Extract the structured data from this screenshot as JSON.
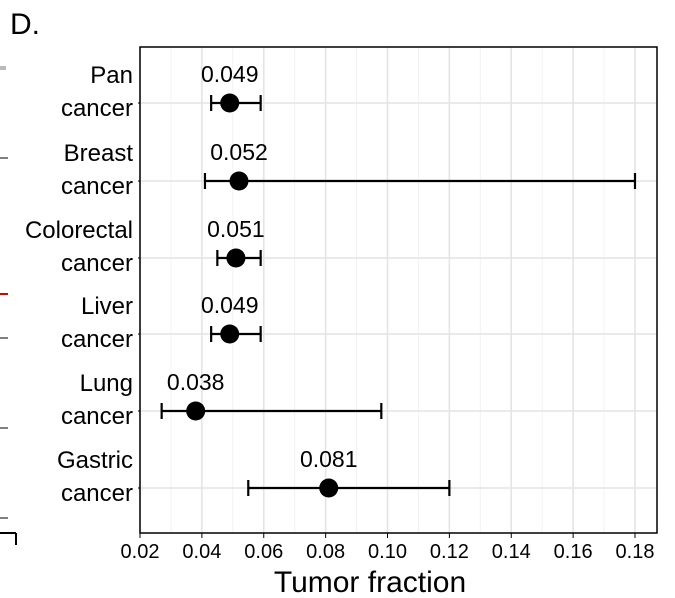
{
  "panel_label": "D.",
  "chart_data": {
    "type": "scatter",
    "subtype": "forest-plot",
    "xlabel": "Tumor fraction",
    "ylabel": "",
    "xlim": [
      0.02,
      0.18
    ],
    "xticks": [
      0.02,
      0.04,
      0.06,
      0.08,
      0.1,
      0.12,
      0.14,
      0.16,
      0.18
    ],
    "xtick_labels": [
      "0.02",
      "0.04",
      "0.06",
      "0.08",
      "0.10",
      "0.12",
      "0.14",
      "0.16",
      "0.18"
    ],
    "grid": true,
    "categories": [
      [
        "Pan",
        "cancer"
      ],
      [
        "Breast",
        "cancer"
      ],
      [
        "Colorectal",
        "cancer"
      ],
      [
        "Liver",
        "cancer"
      ],
      [
        "Lung",
        "cancer"
      ],
      [
        "Gastric",
        "cancer"
      ]
    ],
    "points": [
      {
        "value": 0.049,
        "lower": 0.043,
        "upper": 0.059,
        "label": "0.049"
      },
      {
        "value": 0.052,
        "lower": 0.041,
        "upper": 0.18,
        "label": "0.052"
      },
      {
        "value": 0.051,
        "lower": 0.045,
        "upper": 0.059,
        "label": "0.051"
      },
      {
        "value": 0.049,
        "lower": 0.043,
        "upper": 0.059,
        "label": "0.049"
      },
      {
        "value": 0.038,
        "lower": 0.027,
        "upper": 0.098,
        "label": "0.038"
      },
      {
        "value": 0.081,
        "lower": 0.055,
        "upper": 0.12,
        "label": "0.081"
      }
    ]
  }
}
